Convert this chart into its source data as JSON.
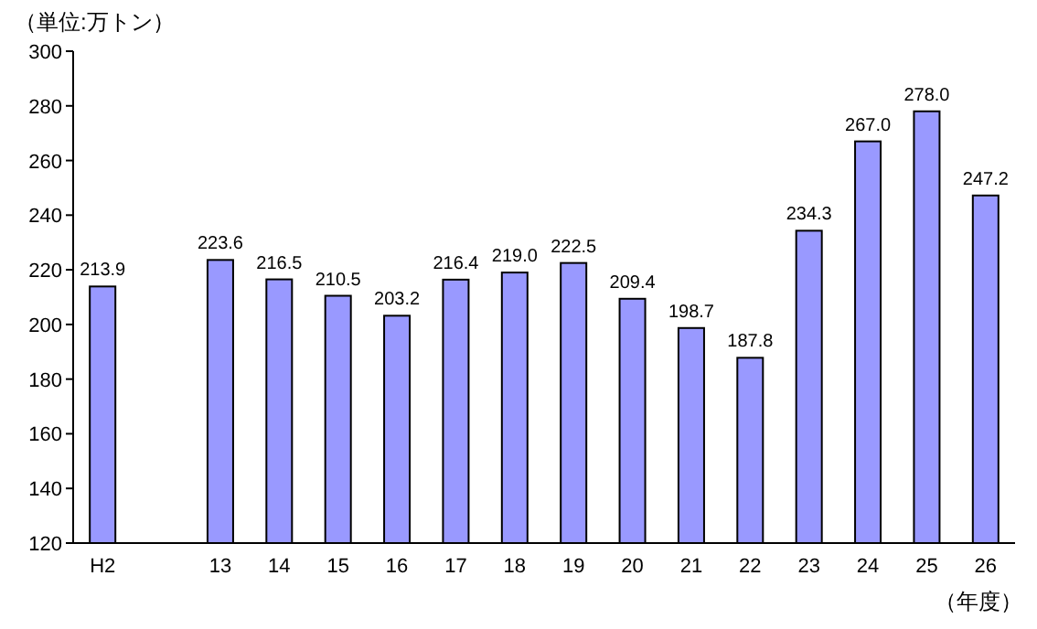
{
  "chart_data": {
    "type": "bar",
    "ylabel": "（単位:万トン）",
    "xlabel": "（年度）",
    "categories": [
      "H2",
      null,
      "13",
      "14",
      "15",
      "16",
      "17",
      "18",
      "19",
      "20",
      "21",
      "22",
      "23",
      "24",
      "25",
      "26"
    ],
    "values": [
      213.9,
      null,
      223.6,
      216.5,
      210.5,
      203.2,
      216.4,
      219.0,
      222.5,
      209.4,
      198.7,
      187.8,
      234.3,
      267.0,
      278.0,
      247.2
    ],
    "value_labels": [
      "213.9",
      null,
      "223.6",
      "216.5",
      "210.5",
      "203.2",
      "216.4",
      "219.0",
      "222.5",
      "209.4",
      "198.7",
      "187.8",
      "234.3",
      "267.0",
      "278.0",
      "247.2"
    ],
    "color": "#9999ff",
    "ylim": [
      120,
      300
    ],
    "yticks": [
      120,
      140,
      160,
      180,
      200,
      220,
      240,
      260,
      280,
      300
    ],
    "grid": false
  }
}
